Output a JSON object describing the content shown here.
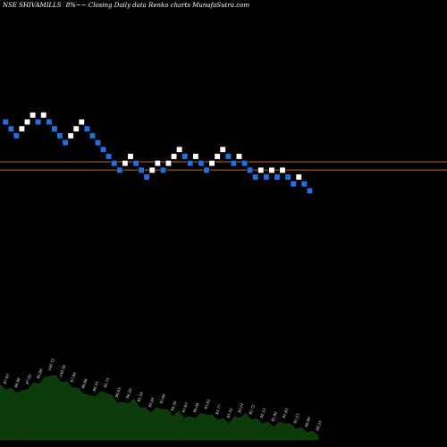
{
  "header": {
    "title": "NSE SHIVAMILLS",
    "subtitle": "8%~~ Closing Daily data Renko charts MunafaSutra.com"
  },
  "colors": {
    "background": "#000000",
    "up_brick": "#ffffff",
    "down_brick": "#1f6fe5",
    "reference_line": "#c8641e",
    "volume_area": "#0b3a0b"
  },
  "chart_data": {
    "type": "renko",
    "title": "NSE SHIVAMILLS",
    "bricks": [
      {
        "level": 26,
        "dir": "down"
      },
      {
        "level": 25,
        "dir": "down"
      },
      {
        "level": 24,
        "dir": "down"
      },
      {
        "level": 25,
        "dir": "up"
      },
      {
        "level": 26,
        "dir": "up"
      },
      {
        "level": 27,
        "dir": "up"
      },
      {
        "level": 26,
        "dir": "down"
      },
      {
        "level": 27,
        "dir": "up"
      },
      {
        "level": 26,
        "dir": "down"
      },
      {
        "level": 25,
        "dir": "down"
      },
      {
        "level": 24,
        "dir": "down"
      },
      {
        "level": 23,
        "dir": "down"
      },
      {
        "level": 24,
        "dir": "up"
      },
      {
        "level": 25,
        "dir": "up"
      },
      {
        "level": 26,
        "dir": "up"
      },
      {
        "level": 25,
        "dir": "down"
      },
      {
        "level": 24,
        "dir": "down"
      },
      {
        "level": 23,
        "dir": "down"
      },
      {
        "level": 22,
        "dir": "down"
      },
      {
        "level": 21,
        "dir": "down"
      },
      {
        "level": 20,
        "dir": "down"
      },
      {
        "level": 19,
        "dir": "down"
      },
      {
        "level": 20,
        "dir": "up"
      },
      {
        "level": 21,
        "dir": "up"
      },
      {
        "level": 20,
        "dir": "down"
      },
      {
        "level": 19,
        "dir": "down"
      },
      {
        "level": 18,
        "dir": "down"
      },
      {
        "level": 19,
        "dir": "up"
      },
      {
        "level": 20,
        "dir": "up"
      },
      {
        "level": 19,
        "dir": "down"
      },
      {
        "level": 20,
        "dir": "up"
      },
      {
        "level": 21,
        "dir": "up"
      },
      {
        "level": 22,
        "dir": "up"
      },
      {
        "level": 21,
        "dir": "down"
      },
      {
        "level": 20,
        "dir": "down"
      },
      {
        "level": 21,
        "dir": "up"
      },
      {
        "level": 20,
        "dir": "down"
      },
      {
        "level": 19,
        "dir": "down"
      },
      {
        "level": 20,
        "dir": "up"
      },
      {
        "level": 21,
        "dir": "up"
      },
      {
        "level": 22,
        "dir": "up"
      },
      {
        "level": 21,
        "dir": "down"
      },
      {
        "level": 20,
        "dir": "down"
      },
      {
        "level": 21,
        "dir": "up"
      },
      {
        "level": 20,
        "dir": "down"
      },
      {
        "level": 19,
        "dir": "down"
      },
      {
        "level": 18,
        "dir": "down"
      },
      {
        "level": 19,
        "dir": "up"
      },
      {
        "level": 18,
        "dir": "down"
      },
      {
        "level": 19,
        "dir": "up"
      },
      {
        "level": 18,
        "dir": "down"
      },
      {
        "level": 19,
        "dir": "up"
      },
      {
        "level": 18,
        "dir": "down"
      },
      {
        "level": 17,
        "dir": "down"
      },
      {
        "level": 18,
        "dir": "up"
      },
      {
        "level": 17,
        "dir": "down"
      },
      {
        "level": 16,
        "dir": "down"
      }
    ],
    "reference_lines": [
      19.8,
      18.6
    ],
    "level_range": [
      0,
      42
    ],
    "volume": {
      "values": [
        62,
        60,
        58,
        56,
        55,
        60,
        64,
        66,
        70,
        75,
        72,
        68,
        65,
        62,
        58,
        55,
        50,
        52,
        54,
        56,
        50,
        45,
        42,
        44,
        46,
        40,
        36,
        34,
        36,
        38,
        34,
        30,
        32,
        28,
        26,
        28,
        30,
        32,
        28,
        26,
        24,
        22,
        26,
        28,
        30,
        26,
        24,
        22,
        20,
        18,
        20,
        22,
        18,
        16,
        14,
        12,
        10,
        8
      ],
      "labels": [
        {
          "i": 1,
          "text": "97.43"
        },
        {
          "i": 3,
          "text": "96.98"
        },
        {
          "i": 5,
          "text": "97.02"
        },
        {
          "i": 7,
          "text": "95.88"
        },
        {
          "i": 9,
          "text": "100.72"
        },
        {
          "i": 11,
          "text": "100.50"
        },
        {
          "i": 13,
          "text": "97.90"
        },
        {
          "i": 15,
          "text": "96.86"
        },
        {
          "i": 17,
          "text": "96.35"
        },
        {
          "i": 19,
          "text": "95.75"
        },
        {
          "i": 21,
          "text": "96.63"
        },
        {
          "i": 23,
          "text": "96.20"
        },
        {
          "i": 25,
          "text": "95.18"
        },
        {
          "i": 27,
          "text": "95.05"
        },
        {
          "i": 29,
          "text": "93.89"
        },
        {
          "i": 31,
          "text": "94.30"
        },
        {
          "i": 33,
          "text": "93.83"
        },
        {
          "i": 35,
          "text": "94.08"
        },
        {
          "i": 37,
          "text": "93.62"
        },
        {
          "i": 39,
          "text": "93.77"
        },
        {
          "i": 41,
          "text": "93.32"
        },
        {
          "i": 43,
          "text": "93.01"
        },
        {
          "i": 45,
          "text": "92.72"
        },
        {
          "i": 47,
          "text": "92.13"
        },
        {
          "i": 49,
          "text": "91.90"
        },
        {
          "i": 51,
          "text": "91.63"
        },
        {
          "i": 53,
          "text": "91.13"
        },
        {
          "i": 55,
          "text": "89.99"
        },
        {
          "i": 57,
          "text": "89.33"
        }
      ]
    }
  }
}
